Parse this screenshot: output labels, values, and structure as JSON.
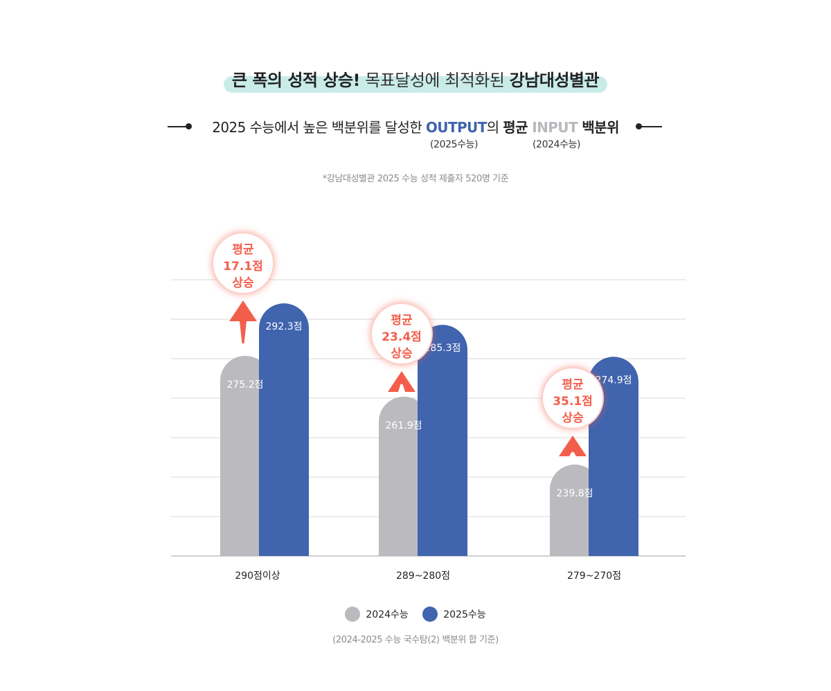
{
  "headline": {
    "part1": "큰 폭의 성적 상승!",
    "part2": " 목표달성에 최적화된 ",
    "part3": "강남대성별관"
  },
  "subline": {
    "part1": "2025 수능에서 높은 백분위를 달성한 ",
    "output": "OUTPUT",
    "part2": "의  ",
    "avg": "평균",
    "input": " INPUT",
    "part3": " 백분위",
    "output_note": "(2025수능)",
    "input_note": "(2024수능)"
  },
  "basis_note": "*강남대성별관 2025 수능 성적 제출자 520명 기준",
  "footnote": "(2024-2025 수능 국수탐(2) 백분위 합 기준)",
  "colors": {
    "series_2024": "#bbbbbf",
    "series_2025": "#4064ae",
    "arrow": "#f35e4c",
    "highlight": "#c9ece9"
  },
  "chart_data": {
    "type": "bar",
    "categories": [
      "290점이상",
      "289~280점",
      "279~270점"
    ],
    "series": [
      {
        "name": "2024수능",
        "values": [
          275.2,
          261.9,
          239.8
        ],
        "labels": [
          "275.2점",
          "261.9점",
          "239.8점"
        ]
      },
      {
        "name": "2025수능",
        "values": [
          292.3,
          285.3,
          274.9
        ],
        "labels": [
          "292.3점",
          "285.3점",
          "274.9점"
        ]
      }
    ],
    "increase_badges": [
      {
        "line1": "평균",
        "line2": "17.1점",
        "line3": "상승"
      },
      {
        "line1": "평균",
        "line2": "23.4점",
        "line3": "상승"
      },
      {
        "line1": "평균",
        "line2": "35.1점",
        "line3": "상승"
      }
    ],
    "ylim": [
      210,
      300
    ],
    "grid": true,
    "legend_position": "bottom-center"
  }
}
